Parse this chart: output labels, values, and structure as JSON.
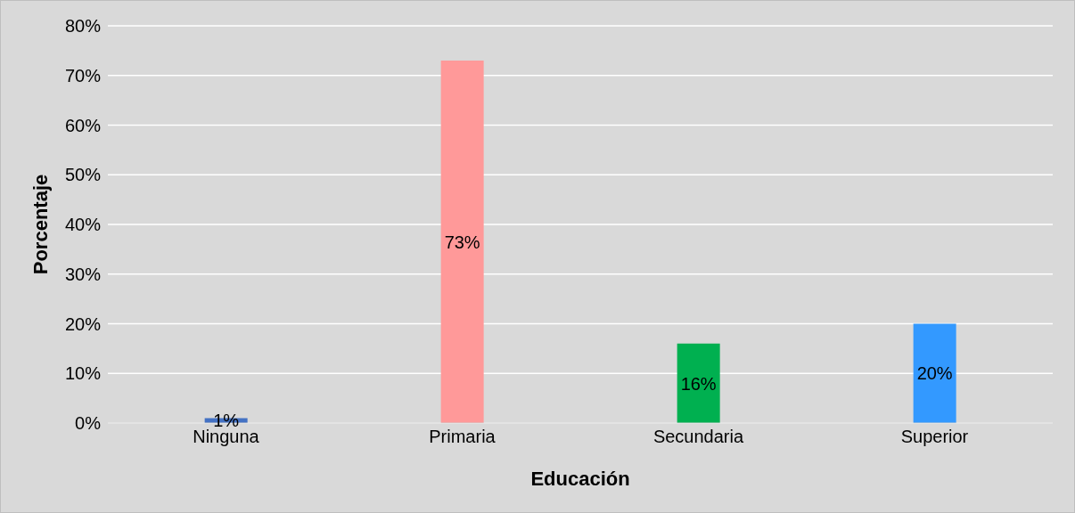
{
  "chart_data": {
    "type": "bar",
    "xlabel": "Educación",
    "ylabel": "Porcentaje",
    "categories": [
      "Ninguna",
      "Primaria",
      "Secundaria",
      "Superior"
    ],
    "values": [
      1,
      73,
      16,
      20
    ],
    "colors": [
      "#4472c4",
      "#ff9999",
      "#00b050",
      "#3399ff"
    ],
    "value_labels": [
      "1%",
      "73%",
      "16%",
      "20%"
    ],
    "ylim": [
      0,
      80
    ],
    "yticks": [
      {
        "value": 0,
        "label": "0%"
      },
      {
        "value": 10,
        "label": "10%"
      },
      {
        "value": 20,
        "label": "20%"
      },
      {
        "value": 30,
        "label": "30%"
      },
      {
        "value": 40,
        "label": "40%"
      },
      {
        "value": 50,
        "label": "50%"
      },
      {
        "value": 60,
        "label": "60%"
      },
      {
        "value": 70,
        "label": "70%"
      },
      {
        "value": 80,
        "label": "80%"
      }
    ],
    "grid": "y",
    "legend": false
  }
}
